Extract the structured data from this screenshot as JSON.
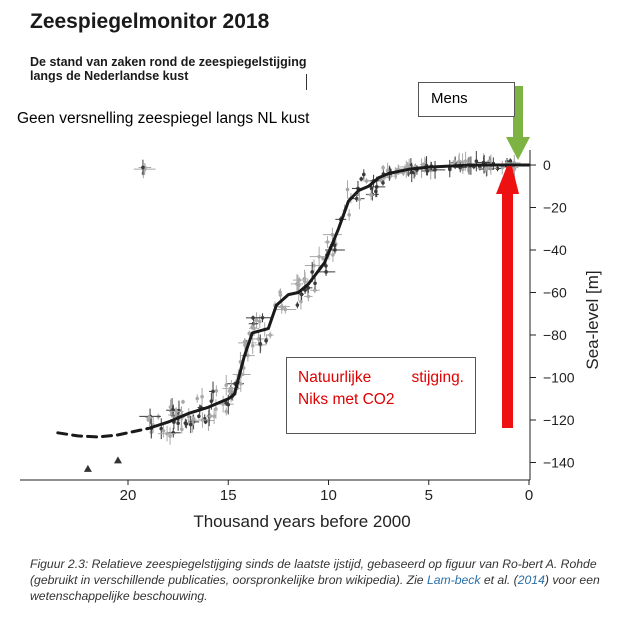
{
  "header": {
    "title": "Zeespiegelmonitor 2018",
    "subtitle_line1": "De stand van zaken rond de zeespiegelstijging",
    "subtitle_line2": "langs de Nederlandse kust"
  },
  "headline": "Geen versnelling zeespiegel langs NL kust",
  "annotations": {
    "mens": "Mens",
    "natuur_word1": "Natuurlijke",
    "natuur_word2": "stijging.",
    "natuur_line2": "Niks met CO2"
  },
  "caption": {
    "part1": "Figuur 2.3: Relatieve zeespiegelstijging sinds de laatste ijstijd, gebaseerd op figuur van Ro-bert A. Rohde (gebruikt in verschillende publicaties, oorspronkelijke bron wikipedia). Zie ",
    "link1": "Lam-beck",
    "part2": " et al. (",
    "link2": "2014",
    "part3": ") voor een wetenschappelijke beschouwing."
  },
  "colors": {
    "arrow_green": "#7cb342",
    "arrow_red": "#ee1111",
    "curve": "#1a1a1a",
    "scatter_grey": "#a8a8a8",
    "scatter_dark": "#3a3a3a"
  },
  "chart_data": {
    "type": "line",
    "xlabel": "Thousand years before 2000",
    "ylabel": "Sea-level [m]",
    "x_ticks": [
      20,
      15,
      10,
      5,
      0
    ],
    "y_ticks": [
      0,
      -20,
      -40,
      -60,
      -80,
      -100,
      -120,
      -140
    ],
    "xlim": [
      21.5,
      0
    ],
    "ylim": [
      -148,
      6
    ],
    "series": [
      {
        "style": "solid",
        "x": [
          19,
          18,
          17,
          16,
          15,
          14.7,
          14.2,
          13.8,
          13,
          12.6,
          12,
          11.5,
          11,
          10.2,
          9.5,
          9,
          8.5,
          8,
          7.5,
          7,
          6,
          5,
          4,
          3,
          2,
          1,
          0
        ],
        "y": [
          -124,
          -121,
          -117,
          -114,
          -110,
          -108,
          -90,
          -79,
          -77,
          -66,
          -61,
          -60,
          -56,
          -46,
          -30,
          -17,
          -12,
          -10,
          -6,
          -4,
          -2,
          -1,
          -0.5,
          0,
          0,
          0,
          0
        ]
      },
      {
        "style": "dashed",
        "x": [
          23.5,
          22.5,
          21.5,
          20.5,
          19.5,
          19
        ],
        "y": [
          -126,
          -127.5,
          -128,
          -127,
          -125,
          -124
        ]
      }
    ],
    "markers": [
      {
        "x": 22.0,
        "y": -143,
        "shape": "triangle"
      },
      {
        "x": 20.5,
        "y": -139,
        "shape": "triangle"
      }
    ]
  }
}
